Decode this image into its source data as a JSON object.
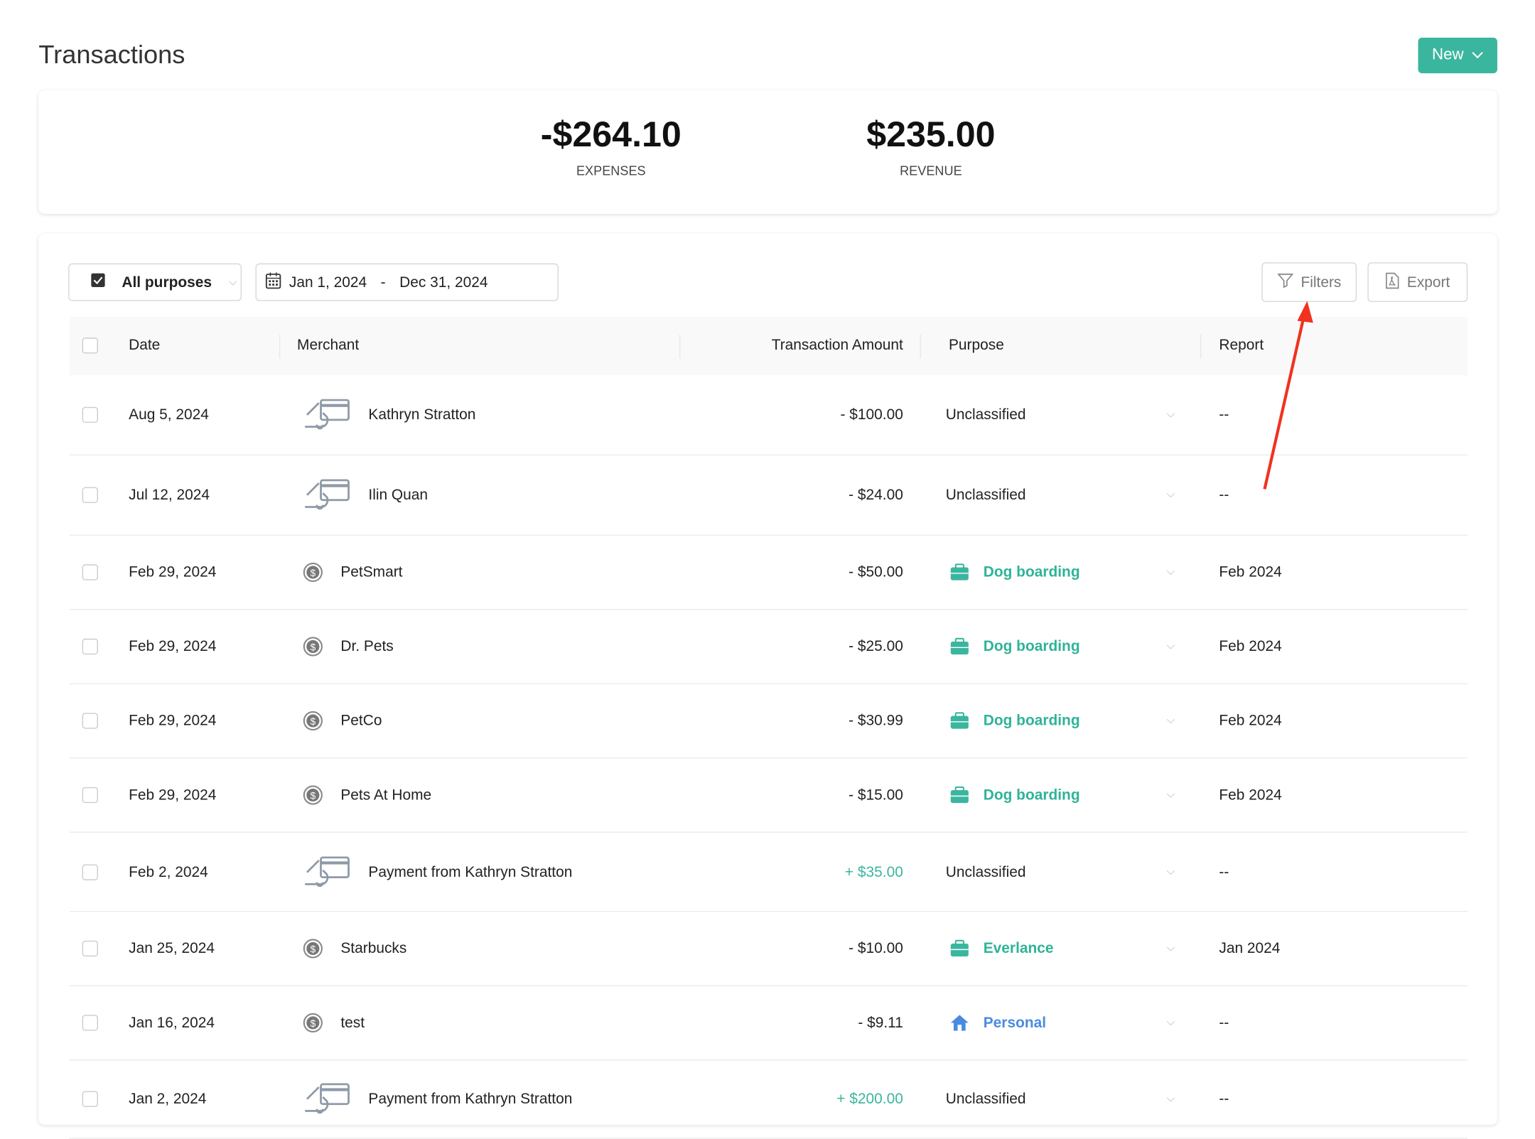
{
  "header": {
    "title": "Transactions",
    "new_button": "New"
  },
  "summary": {
    "expenses": {
      "value": "-$264.10",
      "label": "EXPENSES"
    },
    "revenue": {
      "value": "$235.00",
      "label": "REVENUE"
    }
  },
  "toolbar": {
    "purpose_filter": "All purposes",
    "date_start": "Jan 1, 2024",
    "date_sep": "-",
    "date_end": "Dec 31, 2024",
    "filters": "Filters",
    "export": "Export"
  },
  "table": {
    "columns": [
      "Date",
      "Merchant",
      "Transaction Amount",
      "Purpose",
      "Report"
    ],
    "rows": [
      {
        "date": "Aug 5, 2024",
        "merchant": "Kathryn Stratton",
        "icon": "card-hand-icon",
        "amount": "- $100.00",
        "positive": false,
        "purpose": "Unclassified",
        "purpose_type": "none",
        "report": "--"
      },
      {
        "date": "Jul 12, 2024",
        "merchant": "Ilin Quan",
        "icon": "card-hand-icon",
        "amount": "- $24.00",
        "positive": false,
        "purpose": "Unclassified",
        "purpose_type": "none",
        "report": "--"
      },
      {
        "date": "Feb 29, 2024",
        "merchant": "PetSmart",
        "icon": "dollar-coin-icon",
        "amount": "- $50.00",
        "positive": false,
        "purpose": "Dog boarding",
        "purpose_type": "business",
        "report": "Feb 2024"
      },
      {
        "date": "Feb 29, 2024",
        "merchant": "Dr. Pets",
        "icon": "dollar-coin-icon",
        "amount": "- $25.00",
        "positive": false,
        "purpose": "Dog boarding",
        "purpose_type": "business",
        "report": "Feb 2024"
      },
      {
        "date": "Feb 29, 2024",
        "merchant": "PetCo",
        "icon": "dollar-coin-icon",
        "amount": "- $30.99",
        "positive": false,
        "purpose": "Dog boarding",
        "purpose_type": "business",
        "report": "Feb 2024"
      },
      {
        "date": "Feb 29, 2024",
        "merchant": "Pets At Home",
        "icon": "dollar-coin-icon",
        "amount": "- $15.00",
        "positive": false,
        "purpose": "Dog boarding",
        "purpose_type": "business",
        "report": "Feb 2024"
      },
      {
        "date": "Feb 2, 2024",
        "merchant": "Payment from Kathryn Stratton",
        "icon": "card-hand-icon",
        "amount": "+ $35.00",
        "positive": true,
        "purpose": "Unclassified",
        "purpose_type": "none",
        "report": "--"
      },
      {
        "date": "Jan 25, 2024",
        "merchant": "Starbucks",
        "icon": "dollar-coin-icon",
        "amount": "- $10.00",
        "positive": false,
        "purpose": "Everlance",
        "purpose_type": "business",
        "report": "Jan 2024"
      },
      {
        "date": "Jan 16, 2024",
        "merchant": "test",
        "icon": "dollar-coin-icon",
        "amount": "- $9.11",
        "positive": false,
        "purpose": "Personal",
        "purpose_type": "personal",
        "report": "--"
      },
      {
        "date": "Jan 2, 2024",
        "merchant": "Payment from Kathryn Stratton",
        "icon": "card-hand-icon",
        "amount": "+ $200.00",
        "positive": true,
        "purpose": "Unclassified",
        "purpose_type": "none",
        "report": "--"
      }
    ]
  },
  "colors": {
    "accent": "#3bb69e",
    "business": "#2fb398",
    "personal": "#4a8be0",
    "annotation_arrow": "#f0321e"
  }
}
